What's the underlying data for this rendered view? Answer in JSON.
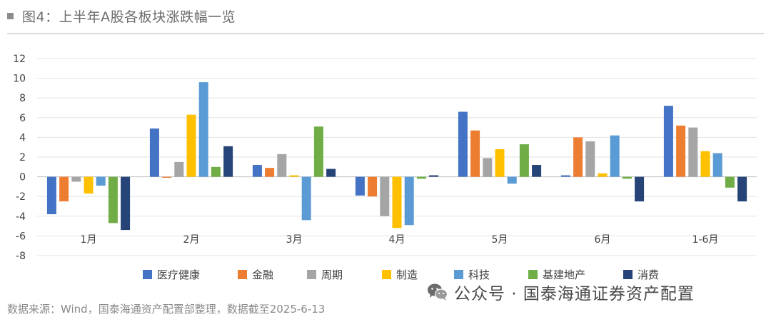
{
  "header": {
    "title": "图4：上半年A股各板块涨跌幅一览"
  },
  "chart_data": {
    "type": "bar",
    "title": "图4：上半年A股各板块涨跌幅一览",
    "xlabel": "",
    "ylabel": "",
    "ylim": [
      -8,
      12
    ],
    "yticks": [
      12,
      10,
      8,
      6,
      4,
      2,
      0,
      -2,
      -4,
      -6,
      -8
    ],
    "grid": true,
    "legend_position": "bottom",
    "categories": [
      "1月",
      "2月",
      "3月",
      "4月",
      "5月",
      "6月",
      "1-6月"
    ],
    "series": [
      {
        "name": "医疗健康",
        "color": "#4472C4",
        "values": [
          -3.8,
          4.9,
          1.2,
          -1.9,
          6.6,
          0.15,
          7.2
        ]
      },
      {
        "name": "金融",
        "color": "#ED7D31",
        "values": [
          -2.5,
          -0.1,
          0.9,
          -2.0,
          4.7,
          4.0,
          5.2
        ]
      },
      {
        "name": "周期",
        "color": "#A5A5A5",
        "values": [
          -0.5,
          1.5,
          2.3,
          -4.0,
          1.9,
          3.6,
          5.0
        ]
      },
      {
        "name": "制造",
        "color": "#FFC000",
        "values": [
          -1.7,
          6.3,
          0.15,
          -5.2,
          2.8,
          0.35,
          2.6
        ]
      },
      {
        "name": "科技",
        "color": "#5B9BD5",
        "values": [
          -0.9,
          9.6,
          -4.4,
          -4.9,
          -0.7,
          4.2,
          2.4
        ]
      },
      {
        "name": "基建地产",
        "color": "#70AD47",
        "values": [
          -4.7,
          1.0,
          5.1,
          -0.2,
          3.3,
          -0.2,
          -1.1
        ]
      },
      {
        "name": "消费",
        "color": "#264478",
        "values": [
          -5.4,
          3.1,
          0.8,
          0.15,
          1.2,
          -2.5,
          -2.5
        ]
      }
    ]
  },
  "footer": {
    "source": "数据来源：Wind，国泰海通资产配置部整理，数据截至2025-6-13",
    "watermark": "公众号 · 国泰海通证券资产配置"
  },
  "icons": {
    "header_marker": "square-marker-icon",
    "watermark_logo": "wechat-icon"
  }
}
